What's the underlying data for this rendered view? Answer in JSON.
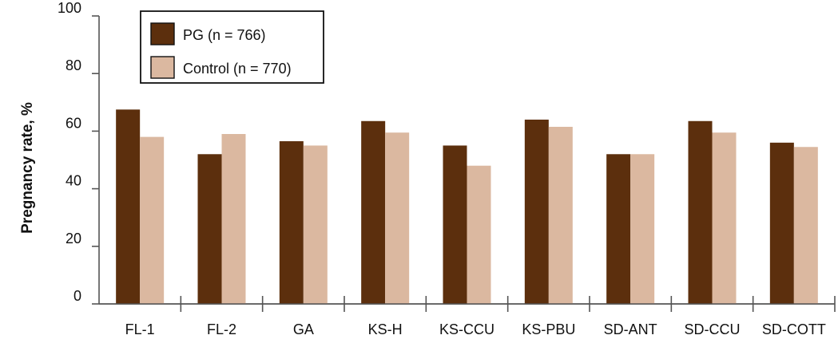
{
  "chart_data": {
    "type": "bar",
    "ylabel": "Pregnancy rate, %",
    "xlabel": "",
    "ylim": [
      0,
      100
    ],
    "yticks": [
      0,
      20,
      40,
      60,
      80,
      100
    ],
    "categories": [
      "FL-1",
      "FL-2",
      "GA",
      "KS-H",
      "KS-CCU",
      "KS-PBU",
      "SD-ANT",
      "SD-CCU",
      "SD-COTT"
    ],
    "series": [
      {
        "name": "PG (n = 766)",
        "color": "#5c2f0d",
        "values": [
          67.5,
          52,
          56.5,
          63.5,
          55,
          64,
          52,
          63.5,
          56
        ]
      },
      {
        "name": "Control (n = 770)",
        "color": "#dbb8a0",
        "values": [
          58,
          59,
          55,
          59.5,
          48,
          61.5,
          52,
          59.5,
          54.5
        ]
      }
    ],
    "legend_position": "top-left",
    "grid": false
  }
}
